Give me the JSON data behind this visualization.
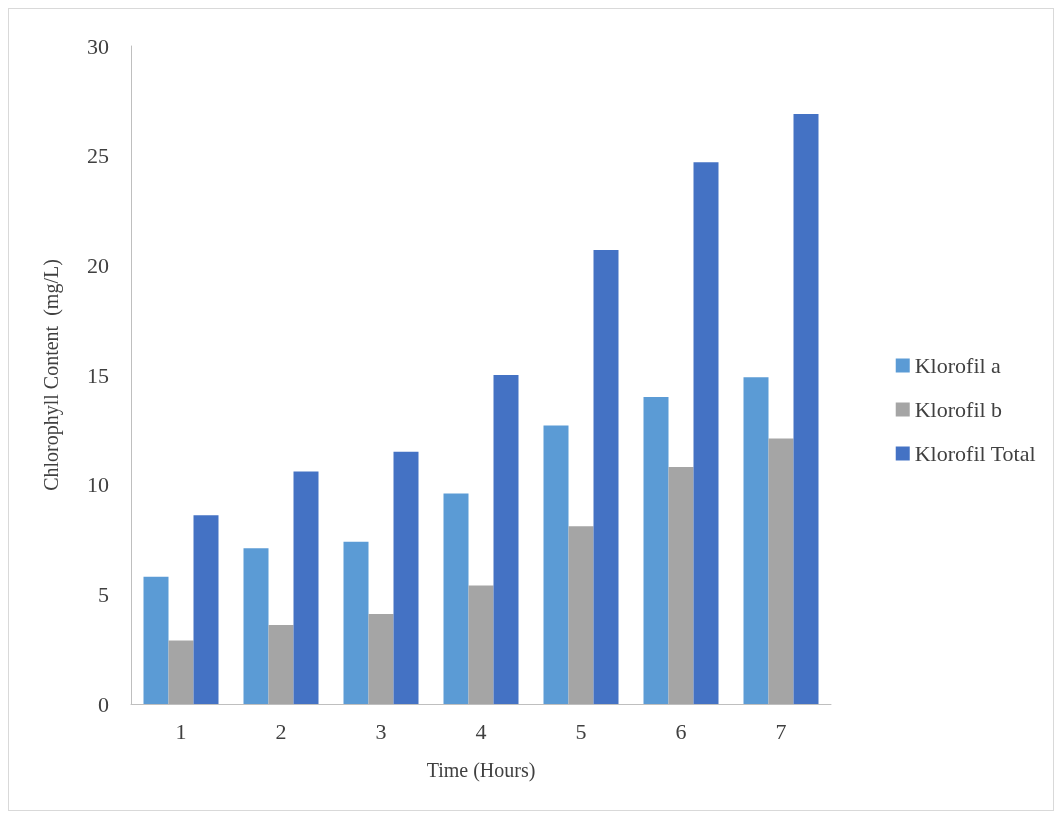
{
  "chart_data": {
    "type": "bar",
    "xlabel": "Time (Hours)",
    "ylabel": "Chlorophyll Content  (mg/L)",
    "categories": [
      "1",
      "2",
      "3",
      "4",
      "5",
      "6",
      "7"
    ],
    "series": [
      {
        "name": "Klorofil a",
        "color": "#5b9bd5",
        "values": [
          5.8,
          7.1,
          7.4,
          9.6,
          12.7,
          14.0,
          14.9
        ]
      },
      {
        "name": "Klorofil b",
        "color": "#a5a5a5",
        "values": [
          2.9,
          3.6,
          4.1,
          5.4,
          8.1,
          10.8,
          12.1
        ]
      },
      {
        "name": "Klorofil Total",
        "color": "#4472c4",
        "values": [
          8.6,
          10.6,
          11.5,
          15.0,
          20.7,
          24.7,
          26.9
        ]
      }
    ],
    "ylim": [
      0,
      30
    ],
    "yticks": [
      0,
      5,
      10,
      15,
      20,
      25,
      30
    ],
    "grid": false,
    "legend": "right"
  }
}
